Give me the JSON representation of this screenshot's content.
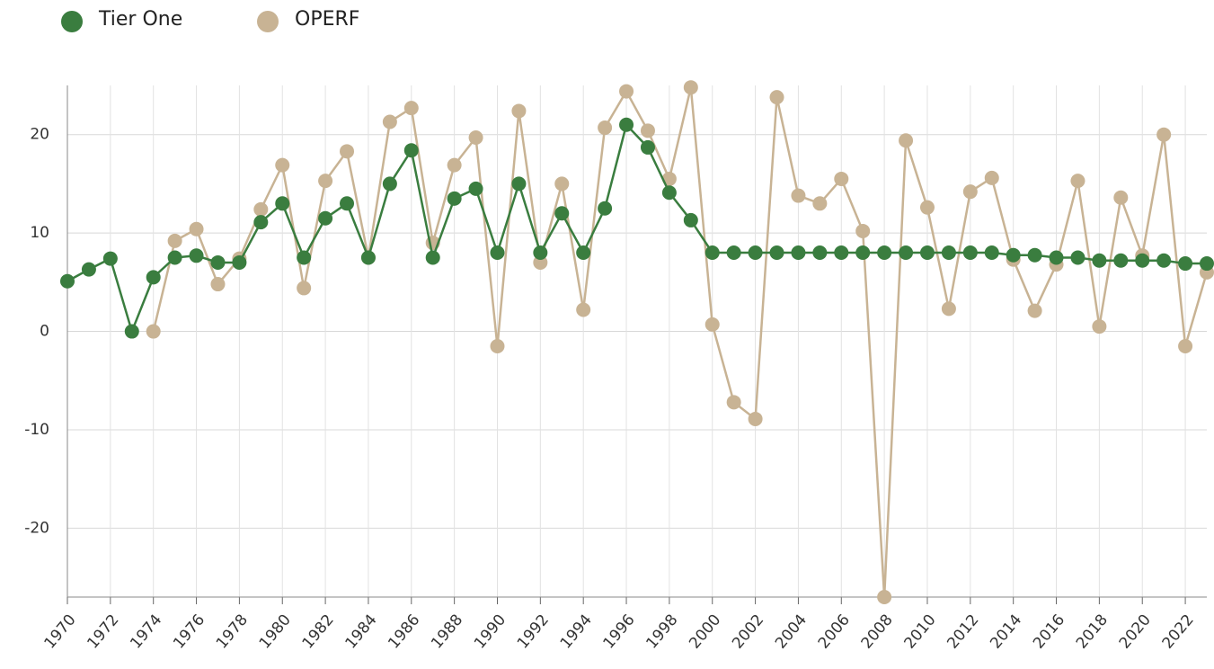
{
  "chart_data": {
    "type": "line",
    "x": [
      1970,
      1971,
      1972,
      1973,
      1974,
      1975,
      1976,
      1977,
      1978,
      1979,
      1980,
      1981,
      1982,
      1983,
      1984,
      1985,
      1986,
      1987,
      1988,
      1989,
      1990,
      1991,
      1992,
      1993,
      1994,
      1995,
      1996,
      1997,
      1998,
      1999,
      2000,
      2001,
      2002,
      2003,
      2004,
      2005,
      2006,
      2007,
      2008,
      2009,
      2010,
      2011,
      2012,
      2013,
      2014,
      2015,
      2016,
      2017,
      2018,
      2019,
      2020,
      2021,
      2022,
      2023
    ],
    "series": [
      {
        "name": "Tier One",
        "color": "#3a7d3f",
        "values": [
          5.1,
          6.3,
          7.4,
          0,
          5.5,
          7.5,
          7.7,
          7.0,
          7.0,
          11.1,
          13.0,
          7.5,
          11.5,
          13.0,
          7.5,
          15.0,
          18.4,
          7.5,
          13.5,
          14.5,
          8.0,
          15.0,
          8.0,
          12.0,
          8.0,
          12.5,
          21.0,
          18.7,
          14.1,
          11.3,
          8.0,
          8.0,
          8.0,
          8.0,
          8.0,
          8.0,
          8.0,
          8.0,
          8.0,
          8.0,
          8.0,
          8.0,
          8.0,
          8.0,
          7.75,
          7.75,
          7.5,
          7.5,
          7.2,
          7.2,
          7.2,
          7.2,
          6.9,
          6.9
        ]
      },
      {
        "name": "OPERF",
        "color": "#c8b394",
        "values": [
          null,
          null,
          null,
          null,
          0,
          9.2,
          10.4,
          4.8,
          7.4,
          12.4,
          16.9,
          4.4,
          15.3,
          18.3,
          7.5,
          21.3,
          22.7,
          9.0,
          16.9,
          19.7,
          -1.5,
          22.4,
          7.0,
          15.0,
          2.2,
          20.7,
          24.4,
          20.4,
          15.5,
          24.8,
          0.7,
          -7.2,
          -8.9,
          23.8,
          13.8,
          13.0,
          15.5,
          10.2,
          -27.0,
          19.4,
          12.6,
          2.3,
          14.2,
          15.6,
          7.3,
          2.1,
          6.8,
          15.3,
          0.5,
          13.6,
          7.7,
          20.0,
          -1.5,
          6.0
        ]
      }
    ],
    "xlim": [
      1970,
      2023
    ],
    "xticks": [
      1970,
      1972,
      1974,
      1976,
      1978,
      1980,
      1982,
      1984,
      1986,
      1988,
      1990,
      1992,
      1994,
      1996,
      1998,
      2000,
      2002,
      2004,
      2006,
      2008,
      2010,
      2012,
      2014,
      2016,
      2018,
      2020,
      2022
    ],
    "ylim": [
      -27,
      25
    ],
    "yticks": [
      -20,
      -10,
      0,
      10,
      20
    ],
    "grid": true
  }
}
